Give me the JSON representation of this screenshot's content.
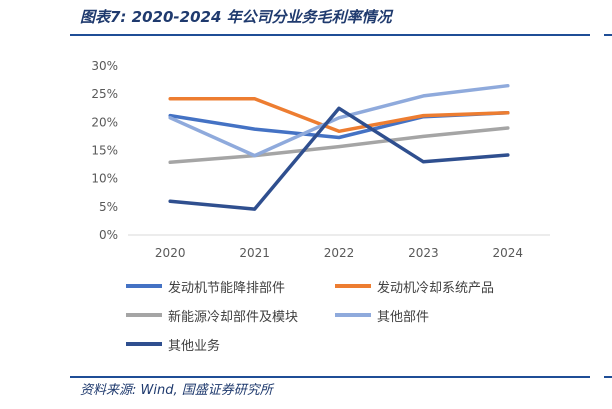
{
  "header": {
    "title": "图表7:  2020-2024 年公司分业务毛利率情况"
  },
  "footer": {
    "source": "资料来源: Wind, 国盛证券研究所"
  },
  "chart_data": {
    "type": "line",
    "title": "",
    "xlabel": "",
    "ylabel": "",
    "categories": [
      "2020",
      "2021",
      "2022",
      "2023",
      "2024"
    ],
    "y_ticks": [
      "0%",
      "5%",
      "10%",
      "15%",
      "20%",
      "25%",
      "30%"
    ],
    "ylim": [
      0,
      30
    ],
    "grid": false,
    "legend_position": "bottom",
    "series": [
      {
        "name": "发动机节能降排部件",
        "color": "#4472c4",
        "values": [
          21.2,
          18.8,
          17.3,
          21.0,
          21.7
        ]
      },
      {
        "name": "发动机冷却系统产品",
        "color": "#ed7d31",
        "values": [
          24.2,
          24.2,
          18.4,
          21.2,
          21.7
        ]
      },
      {
        "name": "新能源冷却部件及模块",
        "color": "#a5a5a5",
        "values": [
          12.9,
          14.1,
          15.7,
          17.5,
          19.0
        ]
      },
      {
        "name": "其他部件",
        "color": "#8faadc",
        "values": [
          20.8,
          14.1,
          20.8,
          24.7,
          26.5
        ]
      },
      {
        "name": "其他业务",
        "color": "#2f4f8f",
        "values": [
          6.0,
          4.6,
          22.5,
          13.0,
          14.2
        ]
      }
    ]
  }
}
